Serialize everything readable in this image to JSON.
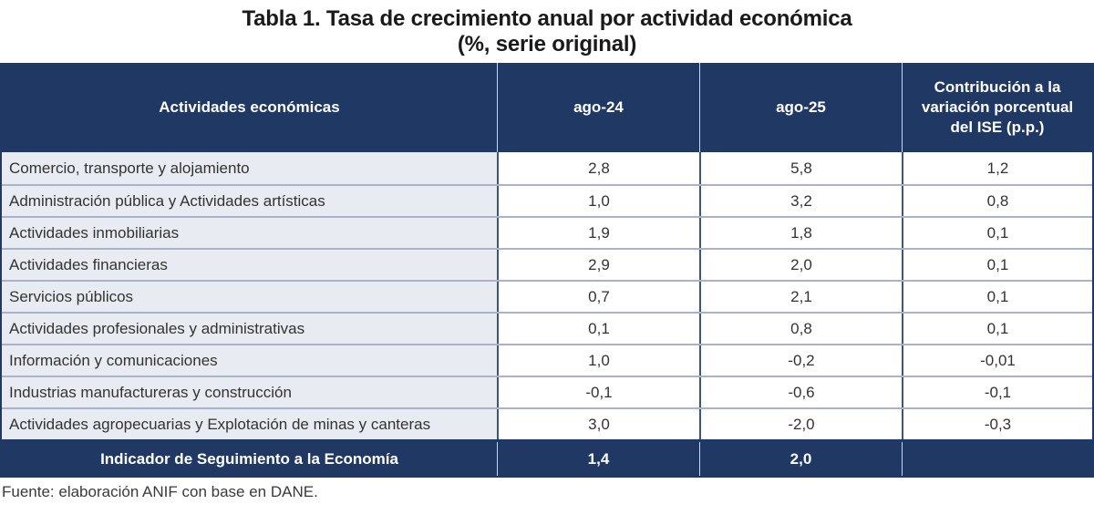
{
  "title": {
    "line1": "Tabla 1. Tasa de crecimiento anual por actividad económica",
    "line2": "(%, serie original)"
  },
  "colors": {
    "header_navy": "#1F3864",
    "label_cell_bg": "#E8EBF2",
    "grid_dark": "#3D5576",
    "grid_light": "#A9B2C9"
  },
  "table": {
    "headers": {
      "activity": "Actividades económicas",
      "ago24": "ago-24",
      "ago25": "ago-25",
      "contribution": "Contribución a la variación porcentual del ISE (p.p.)"
    },
    "rows": [
      {
        "label": "Comercio, transporte y alojamiento",
        "ago24": "2,8",
        "ago25": "5,8",
        "contrib": "1,2"
      },
      {
        "label": "Administración pública y Actividades artísticas",
        "ago24": "1,0",
        "ago25": "3,2",
        "contrib": "0,8"
      },
      {
        "label": "Actividades inmobiliarias",
        "ago24": "1,9",
        "ago25": "1,8",
        "contrib": "0,1"
      },
      {
        "label": "Actividades financieras",
        "ago24": "2,9",
        "ago25": "2,0",
        "contrib": "0,1"
      },
      {
        "label": "Servicios públicos",
        "ago24": "0,7",
        "ago25": "2,1",
        "contrib": "0,1"
      },
      {
        "label": "Actividades profesionales y administrativas",
        "ago24": "0,1",
        "ago25": "0,8",
        "contrib": "0,1"
      },
      {
        "label": "Información y comunicaciones",
        "ago24": "1,0",
        "ago25": "-0,2",
        "contrib": "-0,01"
      },
      {
        "label": "Industrias manufactureras y construcción",
        "ago24": "-0,1",
        "ago25": "-0,6",
        "contrib": "-0,1"
      },
      {
        "label": "Actividades agropecuarias y Explotación de minas y canteras",
        "ago24": "3,0",
        "ago25": "-2,0",
        "contrib": "-0,3"
      }
    ],
    "footer": {
      "label": "Indicador de Seguimiento a la Economía",
      "ago24": "1,4",
      "ago25": "2,0",
      "contrib": ""
    }
  },
  "source": "Fuente: elaboración ANIF con base en DANE."
}
